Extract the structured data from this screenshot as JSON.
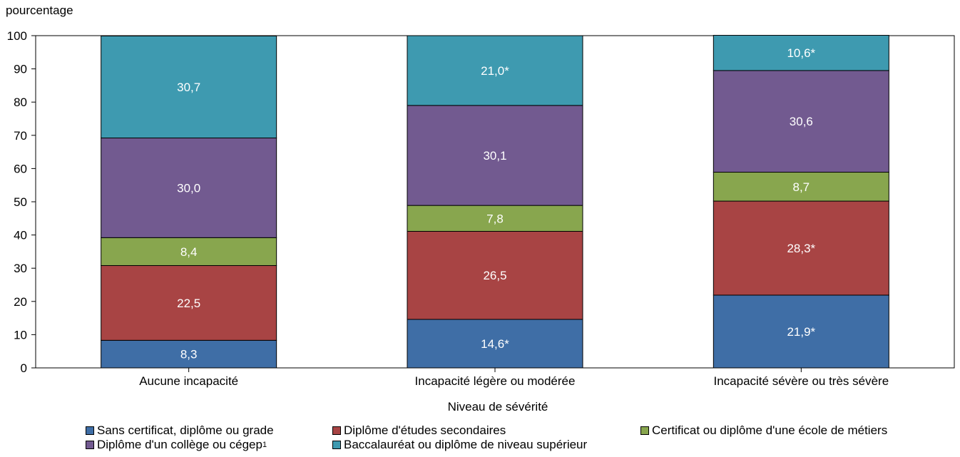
{
  "chart_data": {
    "type": "bar",
    "stacked": true,
    "ylabel": "pourcentage",
    "xlabel": "Niveau de sévérité",
    "ylim": [
      0,
      100
    ],
    "yticks": [
      0,
      10,
      20,
      30,
      40,
      50,
      60,
      70,
      80,
      90,
      100
    ],
    "grid": false,
    "legend_position": "bottom",
    "categories": [
      "Aucune incapacité",
      "Incapacité légère ou modérée",
      "Incapacité sévère ou très sévère"
    ],
    "series": [
      {
        "name": "Sans certificat, diplôme ou grade",
        "color": "#3f6ea6",
        "values": [
          8.3,
          14.6,
          21.9
        ],
        "labels": [
          "8,3",
          "14,6*",
          "21,9*"
        ]
      },
      {
        "name": "Diplôme d'études secondaires",
        "color": "#a84444",
        "values": [
          22.5,
          26.5,
          28.3
        ],
        "labels": [
          "22,5",
          "26,5",
          "28,3*"
        ]
      },
      {
        "name": "Certificat ou diplôme d'une école de métiers",
        "color": "#88a64e",
        "values": [
          8.4,
          7.8,
          8.7
        ],
        "labels": [
          "8,4",
          "7,8",
          "8,7"
        ]
      },
      {
        "name": "Diplôme d'un collège ou cégep",
        "name_sup": "1",
        "color": "#725a90",
        "values": [
          30.0,
          30.1,
          30.6
        ],
        "labels": [
          "30,0",
          "30,1",
          "30,6"
        ]
      },
      {
        "name": "Baccalauréat ou diplôme de niveau supérieur",
        "color": "#3e9ab0",
        "values": [
          30.7,
          21.0,
          10.6
        ],
        "labels": [
          "30,7",
          "21,0*",
          "10,6*"
        ]
      }
    ]
  }
}
